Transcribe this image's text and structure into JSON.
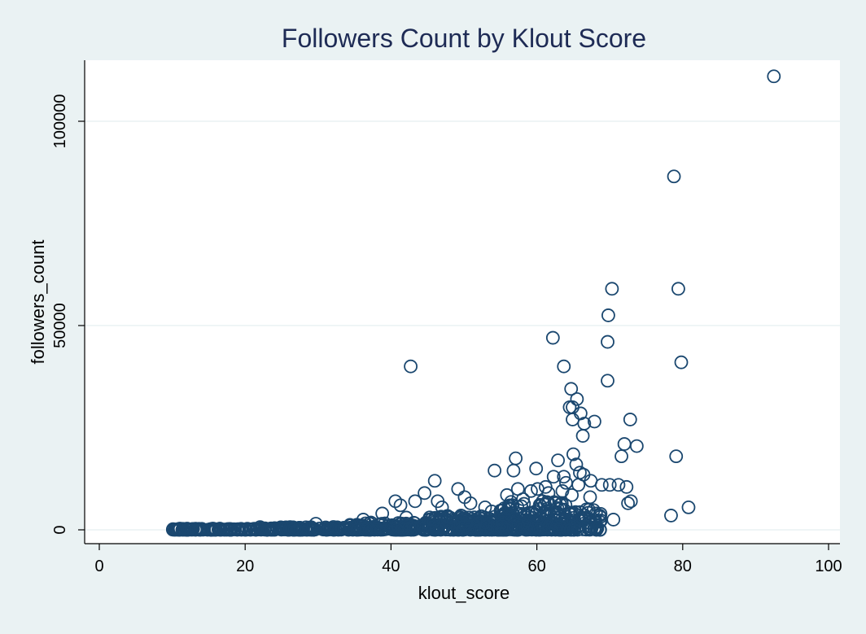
{
  "chart_data": {
    "type": "scatter",
    "title": "Followers Count by Klout Score",
    "xlabel": "klout_score",
    "ylabel": "followers_count",
    "xlim": [
      0,
      100
    ],
    "ylim": [
      -2000,
      112000
    ],
    "xticks": [
      0,
      20,
      40,
      60,
      80,
      100
    ],
    "yticks": [
      0,
      50000,
      100000
    ],
    "grid": true,
    "colors": {
      "marker": "#1a476f",
      "background": "#eaf2f3",
      "plot": "#ffffff",
      "grid": "#eaf2f3"
    },
    "series": [
      {
        "points": [
          [
            92.5,
            111000
          ],
          [
            78.8,
            86500
          ],
          [
            70.3,
            59000
          ],
          [
            79.4,
            59000
          ],
          [
            69.8,
            52500
          ],
          [
            69.7,
            46000
          ],
          [
            62.2,
            47000
          ],
          [
            79.8,
            41000
          ],
          [
            63.7,
            40000
          ],
          [
            42.7,
            40000
          ],
          [
            69.7,
            36500
          ],
          [
            64.7,
            34500
          ],
          [
            65.5,
            32000
          ],
          [
            64.5,
            30000
          ],
          [
            64.9,
            30000
          ],
          [
            66.0,
            28500
          ],
          [
            64.9,
            27000
          ],
          [
            66.5,
            26000
          ],
          [
            67.9,
            26500
          ],
          [
            72.8,
            27000
          ],
          [
            66.3,
            23000
          ],
          [
            72.0,
            21000
          ],
          [
            73.7,
            20500
          ],
          [
            71.6,
            18000
          ],
          [
            79.1,
            18000
          ],
          [
            65.0,
            18500
          ],
          [
            62.9,
            17000
          ],
          [
            57.1,
            17500
          ],
          [
            56.8,
            14500
          ],
          [
            59.9,
            15000
          ],
          [
            54.2,
            14500
          ],
          [
            65.4,
            16000
          ],
          [
            65.9,
            14000
          ],
          [
            66.4,
            13500
          ],
          [
            63.7,
            13000
          ],
          [
            62.3,
            13000
          ],
          [
            64.0,
            11500
          ],
          [
            65.7,
            11000
          ],
          [
            67.4,
            12000
          ],
          [
            68.9,
            11000
          ],
          [
            70.0,
            11000
          ],
          [
            71.2,
            11000
          ],
          [
            72.3,
            10500
          ],
          [
            60.1,
            10000
          ],
          [
            61.2,
            10500
          ],
          [
            59.2,
            9500
          ],
          [
            57.4,
            10000
          ],
          [
            49.2,
            10000
          ],
          [
            46.0,
            12000
          ],
          [
            44.6,
            9000
          ],
          [
            50.1,
            8000
          ],
          [
            55.9,
            8500
          ],
          [
            61.6,
            9000
          ],
          [
            63.5,
            9500
          ],
          [
            64.8,
            8500
          ],
          [
            67.3,
            8000
          ],
          [
            72.9,
            7000
          ],
          [
            72.5,
            6500
          ],
          [
            78.4,
            3500
          ],
          [
            80.8,
            5500
          ],
          [
            70.5,
            2500
          ],
          [
            68.6,
            3500
          ],
          [
            66.8,
            5000
          ],
          [
            66.7,
            3000
          ],
          [
            43.3,
            7000
          ],
          [
            40.6,
            7000
          ],
          [
            41.3,
            6000
          ],
          [
            38.8,
            4000
          ],
          [
            46.4,
            7000
          ],
          [
            47.0,
            5500
          ],
          [
            50.9,
            6500
          ],
          [
            52.9,
            5500
          ],
          [
            53.8,
            4500
          ],
          [
            36.2,
            2500
          ],
          [
            29.7,
            1500
          ],
          [
            42.1,
            3000
          ],
          [
            45.2,
            2500
          ],
          [
            48.1,
            3000
          ],
          [
            49.6,
            3500
          ],
          [
            51.6,
            2000
          ],
          [
            56.3,
            6000
          ],
          [
            58.1,
            7500
          ],
          [
            60.8,
            7000
          ],
          [
            62.6,
            6500
          ]
        ]
      }
    ],
    "dense_bands": [
      {
        "x_range": [
          10,
          22
        ],
        "y_range": [
          0,
          300
        ],
        "count": 110
      },
      {
        "x_range": [
          22,
          34
        ],
        "y_range": [
          0,
          700
        ],
        "count": 120
      },
      {
        "x_range": [
          34,
          45
        ],
        "y_range": [
          0,
          1800
        ],
        "count": 140
      },
      {
        "x_range": [
          45,
          55
        ],
        "y_range": [
          0,
          3500
        ],
        "count": 170
      },
      {
        "x_range": [
          55,
          64
        ],
        "y_range": [
          0,
          7000
        ],
        "count": 220
      },
      {
        "x_range": [
          64,
          69
        ],
        "y_range": [
          0,
          5000
        ],
        "count": 60
      }
    ]
  }
}
